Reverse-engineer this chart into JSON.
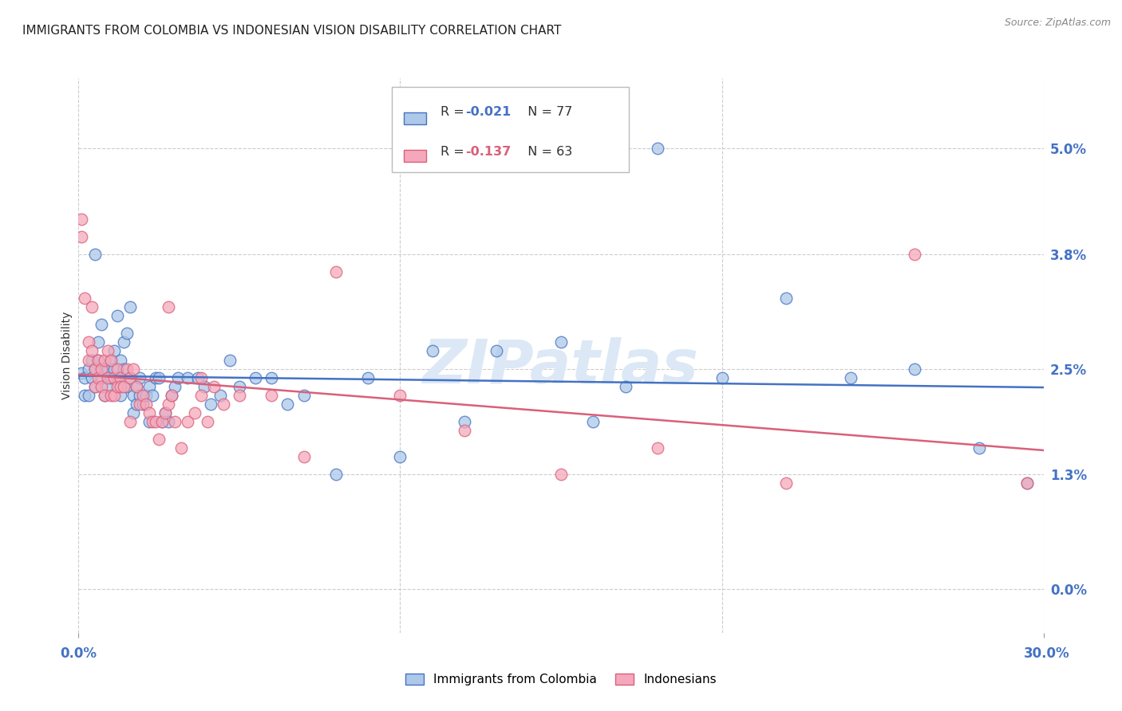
{
  "title": "IMMIGRANTS FROM COLOMBIA VS INDONESIAN VISION DISABILITY CORRELATION CHART",
  "source": "Source: ZipAtlas.com",
  "ylabel": "Vision Disability",
  "xmin": 0.0,
  "xmax": 0.3,
  "ymin": -0.005,
  "ymax": 0.058,
  "legend1_r": "-0.021",
  "legend1_n": "77",
  "legend2_r": "-0.137",
  "legend2_n": "63",
  "colombia_color": "#adc8e8",
  "indonesia_color": "#f5a8bb",
  "colombia_line_color": "#4472c4",
  "indonesia_line_color": "#d9607a",
  "colombia_scatter": [
    [
      0.001,
      0.0245
    ],
    [
      0.002,
      0.024
    ],
    [
      0.002,
      0.022
    ],
    [
      0.003,
      0.025
    ],
    [
      0.003,
      0.022
    ],
    [
      0.004,
      0.026
    ],
    [
      0.004,
      0.024
    ],
    [
      0.005,
      0.025
    ],
    [
      0.005,
      0.023
    ],
    [
      0.005,
      0.038
    ],
    [
      0.006,
      0.026
    ],
    [
      0.006,
      0.028
    ],
    [
      0.007,
      0.03
    ],
    [
      0.007,
      0.024
    ],
    [
      0.008,
      0.025
    ],
    [
      0.008,
      0.022
    ],
    [
      0.009,
      0.025
    ],
    [
      0.009,
      0.023
    ],
    [
      0.01,
      0.026
    ],
    [
      0.01,
      0.024
    ],
    [
      0.011,
      0.027
    ],
    [
      0.011,
      0.025
    ],
    [
      0.012,
      0.031
    ],
    [
      0.012,
      0.024
    ],
    [
      0.013,
      0.026
    ],
    [
      0.013,
      0.022
    ],
    [
      0.014,
      0.028
    ],
    [
      0.014,
      0.025
    ],
    [
      0.015,
      0.029
    ],
    [
      0.015,
      0.023
    ],
    [
      0.016,
      0.032
    ],
    [
      0.016,
      0.024
    ],
    [
      0.017,
      0.022
    ],
    [
      0.017,
      0.02
    ],
    [
      0.018,
      0.023
    ],
    [
      0.018,
      0.021
    ],
    [
      0.019,
      0.024
    ],
    [
      0.019,
      0.022
    ],
    [
      0.02,
      0.021
    ],
    [
      0.021,
      0.022
    ],
    [
      0.022,
      0.023
    ],
    [
      0.022,
      0.019
    ],
    [
      0.023,
      0.022
    ],
    [
      0.024,
      0.024
    ],
    [
      0.025,
      0.024
    ],
    [
      0.026,
      0.019
    ],
    [
      0.027,
      0.02
    ],
    [
      0.028,
      0.019
    ],
    [
      0.029,
      0.022
    ],
    [
      0.03,
      0.023
    ],
    [
      0.031,
      0.024
    ],
    [
      0.034,
      0.024
    ],
    [
      0.037,
      0.024
    ],
    [
      0.039,
      0.023
    ],
    [
      0.041,
      0.021
    ],
    [
      0.044,
      0.022
    ],
    [
      0.047,
      0.026
    ],
    [
      0.05,
      0.023
    ],
    [
      0.055,
      0.024
    ],
    [
      0.06,
      0.024
    ],
    [
      0.065,
      0.021
    ],
    [
      0.07,
      0.022
    ],
    [
      0.09,
      0.024
    ],
    [
      0.11,
      0.027
    ],
    [
      0.13,
      0.027
    ],
    [
      0.15,
      0.028
    ],
    [
      0.17,
      0.023
    ],
    [
      0.2,
      0.024
    ],
    [
      0.22,
      0.033
    ],
    [
      0.24,
      0.024
    ],
    [
      0.26,
      0.025
    ],
    [
      0.28,
      0.016
    ],
    [
      0.295,
      0.012
    ],
    [
      0.18,
      0.05
    ],
    [
      0.08,
      0.013
    ],
    [
      0.1,
      0.015
    ],
    [
      0.12,
      0.019
    ],
    [
      0.16,
      0.019
    ]
  ],
  "indonesia_scatter": [
    [
      0.001,
      0.042
    ],
    [
      0.001,
      0.04
    ],
    [
      0.002,
      0.033
    ],
    [
      0.003,
      0.028
    ],
    [
      0.003,
      0.026
    ],
    [
      0.004,
      0.032
    ],
    [
      0.004,
      0.027
    ],
    [
      0.005,
      0.025
    ],
    [
      0.005,
      0.023
    ],
    [
      0.006,
      0.026
    ],
    [
      0.006,
      0.024
    ],
    [
      0.007,
      0.025
    ],
    [
      0.007,
      0.023
    ],
    [
      0.008,
      0.026
    ],
    [
      0.008,
      0.022
    ],
    [
      0.009,
      0.027
    ],
    [
      0.009,
      0.024
    ],
    [
      0.01,
      0.026
    ],
    [
      0.01,
      0.022
    ],
    [
      0.011,
      0.024
    ],
    [
      0.011,
      0.022
    ],
    [
      0.012,
      0.025
    ],
    [
      0.012,
      0.023
    ],
    [
      0.013,
      0.024
    ],
    [
      0.013,
      0.023
    ],
    [
      0.014,
      0.023
    ],
    [
      0.015,
      0.025
    ],
    [
      0.016,
      0.024
    ],
    [
      0.017,
      0.025
    ],
    [
      0.018,
      0.023
    ],
    [
      0.019,
      0.021
    ],
    [
      0.02,
      0.022
    ],
    [
      0.021,
      0.021
    ],
    [
      0.022,
      0.02
    ],
    [
      0.023,
      0.019
    ],
    [
      0.024,
      0.019
    ],
    [
      0.025,
      0.017
    ],
    [
      0.026,
      0.019
    ],
    [
      0.027,
      0.02
    ],
    [
      0.028,
      0.021
    ],
    [
      0.029,
      0.022
    ],
    [
      0.03,
      0.019
    ],
    [
      0.032,
      0.016
    ],
    [
      0.034,
      0.019
    ],
    [
      0.036,
      0.02
    ],
    [
      0.038,
      0.022
    ],
    [
      0.04,
      0.019
    ],
    [
      0.042,
      0.023
    ],
    [
      0.045,
      0.021
    ],
    [
      0.05,
      0.022
    ],
    [
      0.06,
      0.022
    ],
    [
      0.07,
      0.015
    ],
    [
      0.08,
      0.036
    ],
    [
      0.1,
      0.022
    ],
    [
      0.12,
      0.018
    ],
    [
      0.15,
      0.013
    ],
    [
      0.18,
      0.016
    ],
    [
      0.22,
      0.012
    ],
    [
      0.26,
      0.038
    ],
    [
      0.295,
      0.012
    ],
    [
      0.028,
      0.032
    ],
    [
      0.038,
      0.024
    ],
    [
      0.016,
      0.019
    ]
  ],
  "background_color": "#ffffff",
  "grid_color": "#cccccc",
  "tick_color": "#4472c4",
  "title_fontsize": 11,
  "axis_label_fontsize": 10,
  "tick_fontsize": 12,
  "watermark_color": "#dce8f5"
}
